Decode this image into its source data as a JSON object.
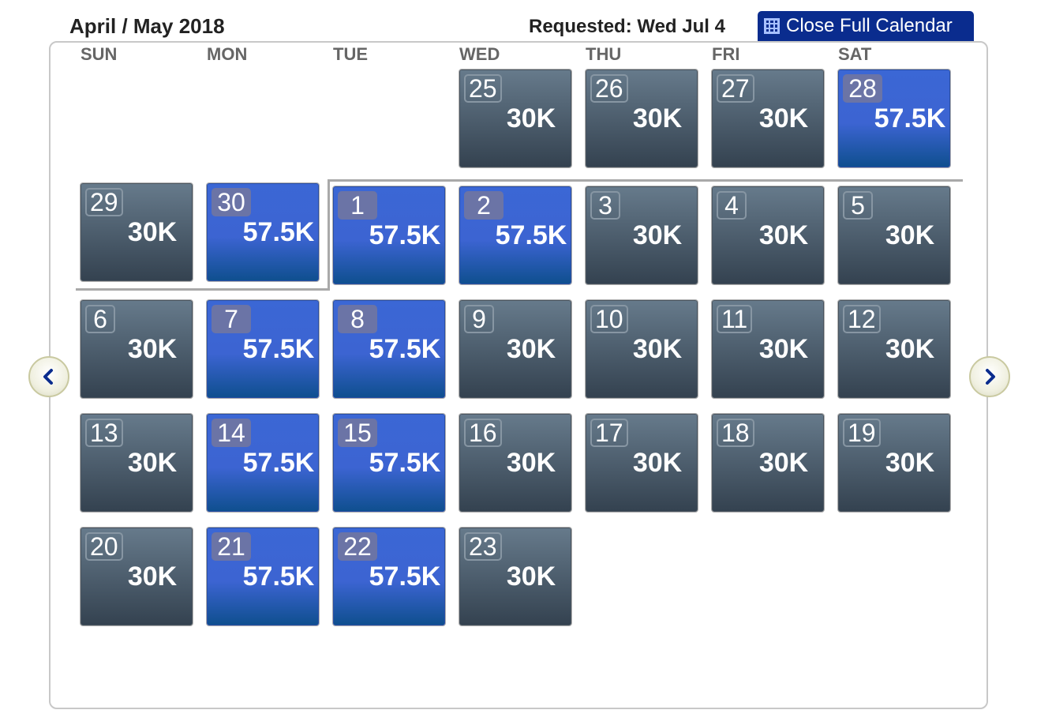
{
  "header": {
    "title": "April / May 2018",
    "requested": "Requested: Wed Jul 4",
    "close_label": "Close Full Calendar"
  },
  "weekdays": [
    "SUN",
    "MON",
    "TUE",
    "WED",
    "THU",
    "FRI",
    "SAT"
  ],
  "colors": {
    "gray_fare": "#3f4d5a",
    "blue_fare": "#3c64d2",
    "button": "#0a2c8e"
  },
  "days": [
    {
      "day": "25",
      "price": "30K",
      "type": "gray"
    },
    {
      "day": "26",
      "price": "30K",
      "type": "gray"
    },
    {
      "day": "27",
      "price": "30K",
      "type": "gray"
    },
    {
      "day": "28",
      "price": "57.5K",
      "type": "blue"
    },
    {
      "day": "29",
      "price": "30K",
      "type": "gray"
    },
    {
      "day": "30",
      "price": "57.5K",
      "type": "blue"
    },
    {
      "day": "1",
      "price": "57.5K",
      "type": "blue"
    },
    {
      "day": "2",
      "price": "57.5K",
      "type": "blue"
    },
    {
      "day": "3",
      "price": "30K",
      "type": "gray"
    },
    {
      "day": "4",
      "price": "30K",
      "type": "gray"
    },
    {
      "day": "5",
      "price": "30K",
      "type": "gray"
    },
    {
      "day": "6",
      "price": "30K",
      "type": "gray"
    },
    {
      "day": "7",
      "price": "57.5K",
      "type": "blue"
    },
    {
      "day": "8",
      "price": "57.5K",
      "type": "blue"
    },
    {
      "day": "9",
      "price": "30K",
      "type": "gray"
    },
    {
      "day": "10",
      "price": "30K",
      "type": "gray"
    },
    {
      "day": "11",
      "price": "30K",
      "type": "gray"
    },
    {
      "day": "12",
      "price": "30K",
      "type": "gray"
    },
    {
      "day": "13",
      "price": "30K",
      "type": "gray"
    },
    {
      "day": "14",
      "price": "57.5K",
      "type": "blue"
    },
    {
      "day": "15",
      "price": "57.5K",
      "type": "blue"
    },
    {
      "day": "16",
      "price": "30K",
      "type": "gray"
    },
    {
      "day": "17",
      "price": "30K",
      "type": "gray"
    },
    {
      "day": "18",
      "price": "30K",
      "type": "gray"
    },
    {
      "day": "19",
      "price": "30K",
      "type": "gray"
    },
    {
      "day": "20",
      "price": "30K",
      "type": "gray"
    },
    {
      "day": "21",
      "price": "57.5K",
      "type": "blue"
    },
    {
      "day": "22",
      "price": "57.5K",
      "type": "blue"
    },
    {
      "day": "23",
      "price": "30K",
      "type": "gray"
    }
  ],
  "icons": {
    "prev": "chevron-left-icon",
    "next": "chevron-right-icon",
    "close": "grid-icon"
  }
}
